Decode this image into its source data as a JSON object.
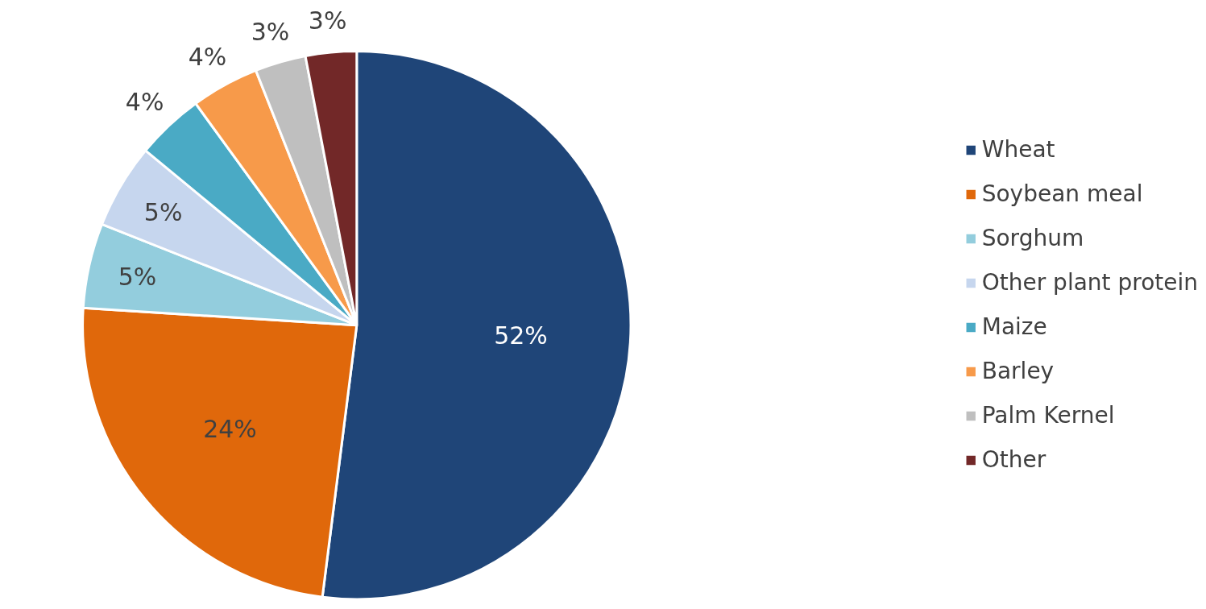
{
  "chart_data": {
    "type": "pie",
    "categories": [
      "Wheat",
      "Soybean meal",
      "Sorghum",
      "Other plant protein",
      "Maize",
      "Barley",
      "Palm Kernel",
      "Other"
    ],
    "values": [
      52,
      24,
      5,
      5,
      4,
      4,
      3,
      3
    ],
    "colors": [
      "#1f4578",
      "#e0680b",
      "#93cddd",
      "#c6d6ee",
      "#4aaac5",
      "#f79a4a",
      "#bfbfbf",
      "#722828"
    ],
    "value_labels": [
      "52%",
      "24%",
      "5%",
      "5%",
      "4%",
      "4%",
      "3%",
      "3%"
    ],
    "legend": "right"
  }
}
